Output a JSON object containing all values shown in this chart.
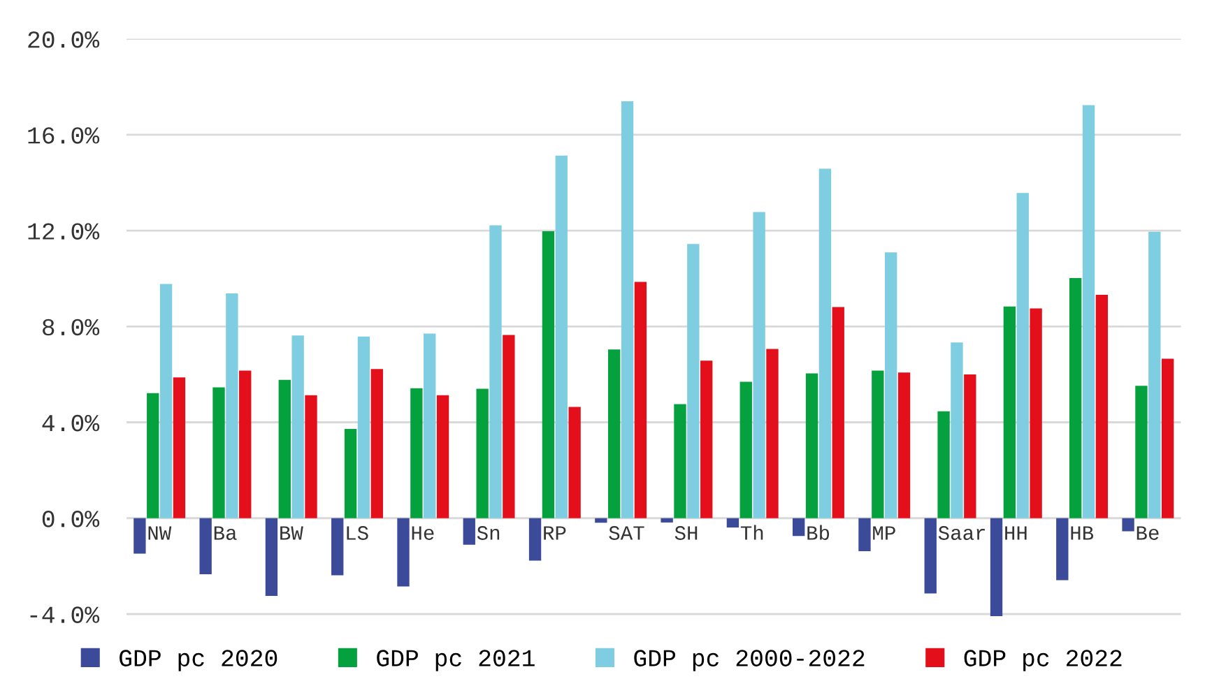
{
  "chart_data": {
    "type": "bar",
    "categories": [
      "NW",
      "Ba",
      "BW",
      "LS",
      "He",
      "Sn",
      "RP",
      "SAT",
      "SH",
      "Th",
      "Bb",
      "MP",
      "Saar",
      "HH",
      "HB",
      "Be"
    ],
    "series": [
      {
        "name": "GDP pc 2020",
        "color": "#3c4a9a",
        "values": [
          -1.48,
          -2.34,
          -3.24,
          -2.38,
          -2.85,
          -1.11,
          -1.77,
          -0.19,
          -0.18,
          -0.39,
          -0.74,
          -1.38,
          -3.14,
          -4.09,
          -2.59,
          -0.55
        ]
      },
      {
        "name": "GDP pc 2021",
        "color": "#06a13f",
        "values": [
          5.22,
          5.46,
          5.77,
          3.72,
          5.42,
          5.4,
          11.97,
          7.04,
          4.76,
          5.69,
          6.04,
          6.16,
          4.46,
          8.83,
          10.02,
          5.52
        ]
      },
      {
        "name": "GDP pc 2000-2022",
        "color": "#7fcde0",
        "values": [
          9.77,
          9.38,
          7.62,
          7.58,
          7.7,
          12.22,
          15.13,
          17.39,
          11.44,
          12.77,
          14.58,
          11.09,
          7.33,
          13.57,
          17.23,
          11.95
        ]
      },
      {
        "name": "GDP pc 2022",
        "color": "#e30f1b",
        "values": [
          5.87,
          6.16,
          5.13,
          6.22,
          5.13,
          7.64,
          4.64,
          9.86,
          6.57,
          7.06,
          8.81,
          6.08,
          6.0,
          8.75,
          9.32,
          6.65
        ]
      }
    ],
    "ylim": [
      -4.2,
      20
    ],
    "yticks": [
      {
        "value": -4,
        "label": "-4.0%"
      },
      {
        "value": 0,
        "label": "0.0%"
      },
      {
        "value": 4,
        "label": "4.0%"
      },
      {
        "value": 8,
        "label": "8.0%"
      },
      {
        "value": 12,
        "label": "12.0%"
      },
      {
        "value": 16,
        "label": "16.0%"
      },
      {
        "value": 20,
        "label": "20.0%"
      }
    ],
    "grid": "y",
    "legend": "bottom"
  }
}
